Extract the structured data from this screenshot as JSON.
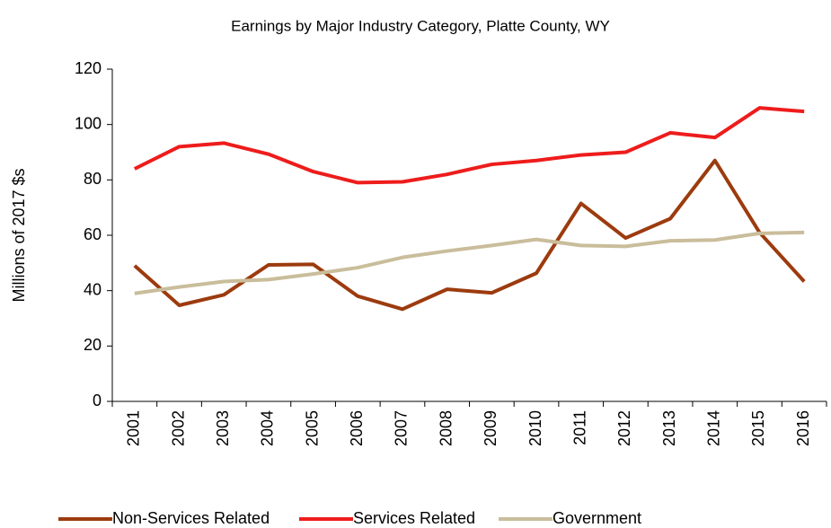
{
  "chart_data": {
    "type": "line",
    "title": "Earnings by Major Industry Category, Platte County, WY",
    "y_label": "Millions of 2017 $s",
    "categories": [
      "2001",
      "2002",
      "2003",
      "2004",
      "2005",
      "2006",
      "2007",
      "2008",
      "2009",
      "2010",
      "2011",
      "2012",
      "2013",
      "2014",
      "2015",
      "2016"
    ],
    "series": [
      {
        "name": "Non-Services Related",
        "color": "#9c3b0e",
        "values": [
          49,
          34.7,
          38.5,
          49.3,
          49.5,
          38,
          33.3,
          40.5,
          39.2,
          46.3,
          71.5,
          59,
          66,
          87,
          61,
          43.3
        ]
      },
      {
        "name": "Services Related",
        "color": "#ee1c1c",
        "values": [
          84,
          92,
          93.3,
          89.3,
          83,
          79,
          79.3,
          82,
          85.6,
          87,
          89,
          90,
          97,
          95.3,
          106,
          104.7
        ]
      },
      {
        "name": "Government",
        "color": "#c9bd9b",
        "values": [
          39,
          41.3,
          43.3,
          44,
          46,
          48.3,
          52,
          54.3,
          56.3,
          58.5,
          56.3,
          56,
          58,
          58.3,
          60.7,
          61
        ]
      }
    ],
    "ylim": [
      0,
      120
    ],
    "yticks": [
      0,
      20,
      40,
      60,
      80,
      100,
      120
    ],
    "grid": false,
    "legend": "bottom"
  }
}
